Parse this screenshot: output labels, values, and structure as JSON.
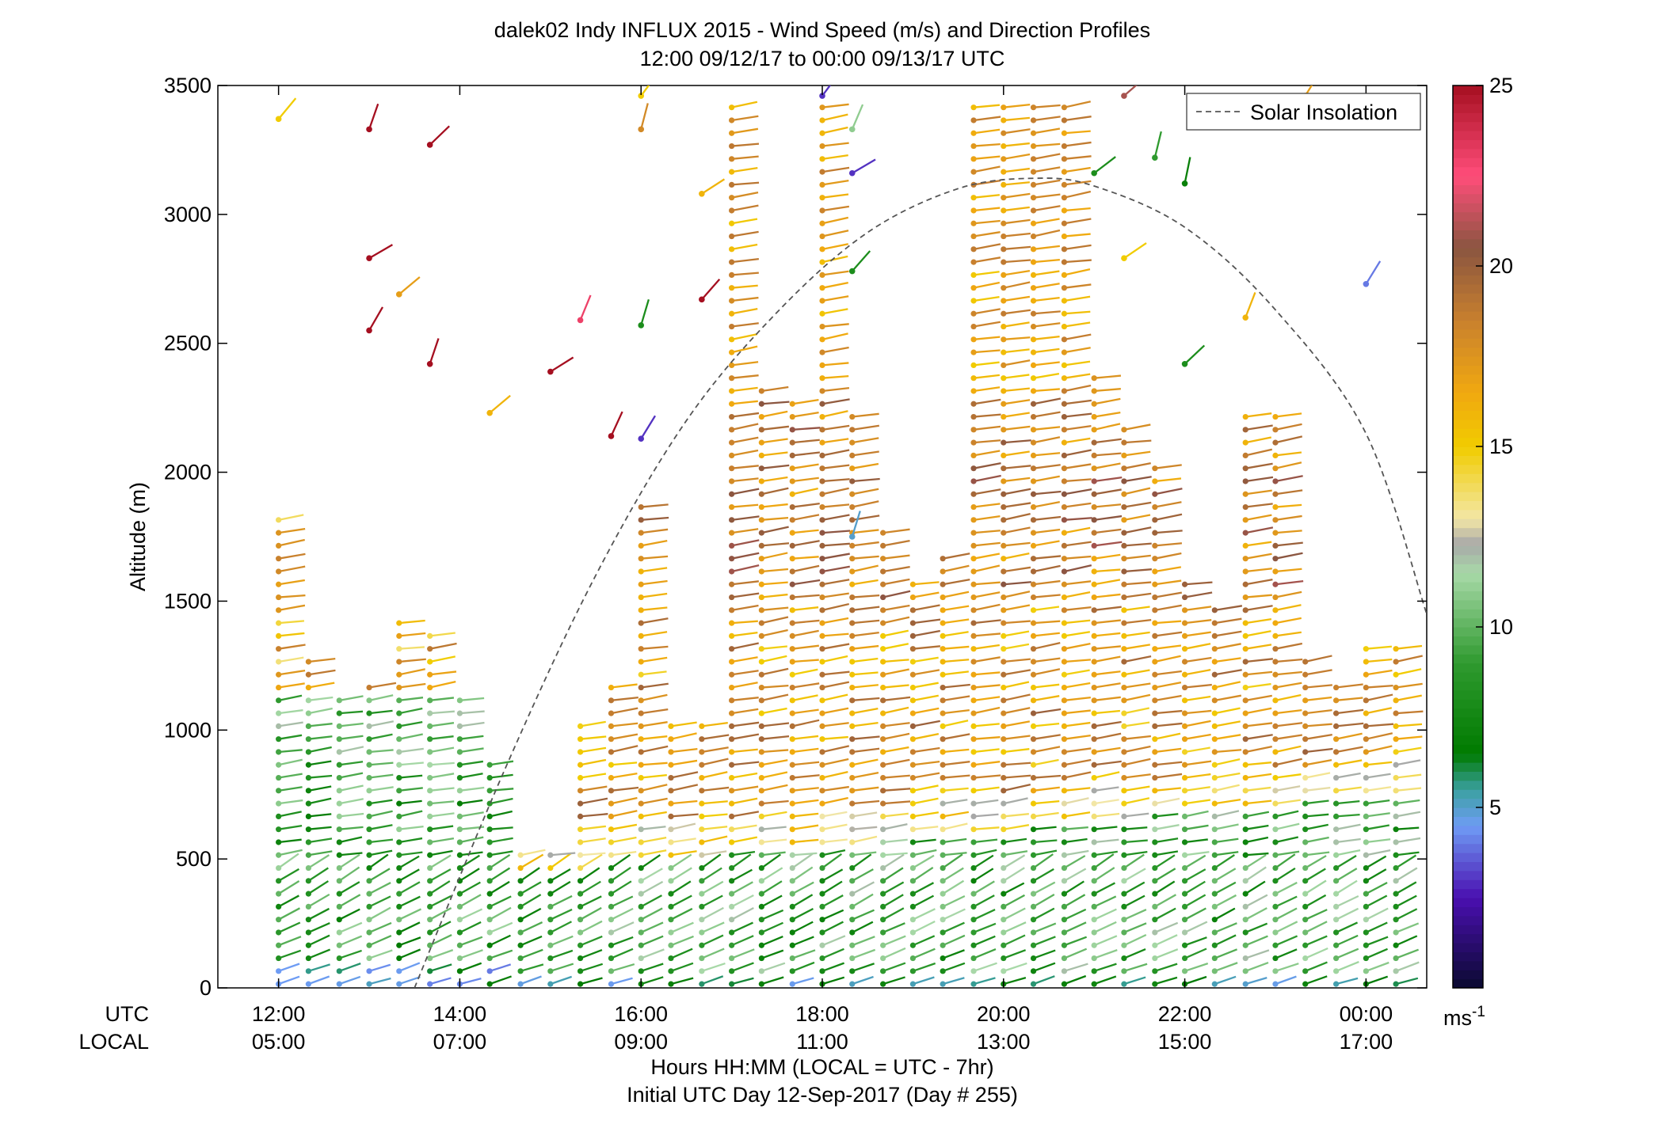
{
  "chart_data": {
    "type": "wind-barb-profile",
    "title": "dalek02 Indy INFLUX 2015 - Wind Speed (m/s) and Direction Profiles",
    "subtitle": "12:00 09/12/17 to 00:00 09/13/17  UTC",
    "ylabel": "Altitude (m)",
    "ylim": [
      0,
      3500
    ],
    "yticks": [
      0,
      500,
      1000,
      1500,
      2000,
      2500,
      3000,
      3500
    ],
    "xlim_hours": [
      11.33,
      24.67
    ],
    "x_row_labels": {
      "utc": "UTC",
      "local": "LOCAL"
    },
    "xticks": [
      {
        "hour": 12,
        "utc": "12:00",
        "local": "05:00"
      },
      {
        "hour": 14,
        "utc": "14:00",
        "local": "07:00"
      },
      {
        "hour": 16,
        "utc": "16:00",
        "local": "09:00"
      },
      {
        "hour": 18,
        "utc": "18:00",
        "local": "11:00"
      },
      {
        "hour": 20,
        "utc": "20:00",
        "local": "13:00"
      },
      {
        "hour": 22,
        "utc": "22:00",
        "local": "15:00"
      },
      {
        "hour": 24,
        "utc": "00:00",
        "local": "17:00"
      }
    ],
    "xlabel": "Hours HH:MM  (LOCAL = UTC - 7hr)",
    "xlabel2": "Initial UTC Day 12-Sep-2017 (Day # 255)",
    "legend": {
      "label": "Solar Insolation",
      "placement": "top-right",
      "line_color": "#555555"
    },
    "colorbar": {
      "range": [
        0,
        25
      ],
      "ticks": [
        5,
        10,
        15,
        20,
        25
      ],
      "unit_label": "ms",
      "unit_exponent": "-1",
      "stops": [
        {
          "v": 0,
          "color": "#0a0a30"
        },
        {
          "v": 2.5,
          "color": "#4a0fb0"
        },
        {
          "v": 4.5,
          "color": "#6f9cf5"
        },
        {
          "v": 5.5,
          "color": "#3aa0a0"
        },
        {
          "v": 6.5,
          "color": "#007a00"
        },
        {
          "v": 9,
          "color": "#2f9a2f"
        },
        {
          "v": 11.5,
          "color": "#a8d9a8"
        },
        {
          "v": 12.3,
          "color": "#a8a8a8"
        },
        {
          "v": 13,
          "color": "#f3e7a6"
        },
        {
          "v": 15,
          "color": "#f1cc00"
        },
        {
          "v": 16.5,
          "color": "#f0a810"
        },
        {
          "v": 18.5,
          "color": "#c8802e"
        },
        {
          "v": 20.5,
          "color": "#8a5540"
        },
        {
          "v": 22.5,
          "color": "#ff4d7a"
        },
        {
          "v": 25,
          "color": "#a50f20"
        }
      ]
    },
    "solar_insolation_curve": [
      {
        "hour": 13.5,
        "alt": 0
      },
      {
        "hour": 14.5,
        "alt": 850
      },
      {
        "hour": 15.5,
        "alt": 1600
      },
      {
        "hour": 16.5,
        "alt": 2200
      },
      {
        "hour": 17.5,
        "alt": 2620
      },
      {
        "hour": 18.5,
        "alt": 2930
      },
      {
        "hour": 19.5,
        "alt": 3100
      },
      {
        "hour": 20.33,
        "alt": 3140
      },
      {
        "hour": 21,
        "alt": 3110
      },
      {
        "hour": 22,
        "alt": 2950
      },
      {
        "hour": 23,
        "alt": 2630
      },
      {
        "hour": 24,
        "alt": 2150
      },
      {
        "hour": 24.67,
        "alt": 1450
      }
    ],
    "profiles": [
      {
        "hour": 12.0,
        "top": 1830,
        "regime": "morning"
      },
      {
        "hour": 12.33,
        "top": 1300,
        "regime": "morning"
      },
      {
        "hour": 12.67,
        "top": 1120,
        "regime": "morning"
      },
      {
        "hour": 13.0,
        "top": 1170,
        "regime": "morning"
      },
      {
        "hour": 13.33,
        "top": 1440,
        "regime": "morning"
      },
      {
        "hour": 13.67,
        "top": 1370,
        "regime": "morning"
      },
      {
        "hour": 14.0,
        "top": 1120,
        "regime": "morning"
      },
      {
        "hour": 14.33,
        "top": 900,
        "regime": "morning"
      },
      {
        "hour": 14.67,
        "top": 520,
        "regime": "day"
      },
      {
        "hour": 15.0,
        "top": 560,
        "regime": "day"
      },
      {
        "hour": 15.33,
        "top": 1050,
        "regime": "day"
      },
      {
        "hour": 15.67,
        "top": 1210,
        "regime": "day"
      },
      {
        "hour": 16.0,
        "top": 1900,
        "regime": "day"
      },
      {
        "hour": 16.33,
        "top": 1050,
        "regime": "day"
      },
      {
        "hour": 16.67,
        "top": 1050,
        "regime": "day"
      },
      {
        "hour": 17.0,
        "top": 3460,
        "regime": "day"
      },
      {
        "hour": 17.33,
        "top": 2360,
        "regime": "day"
      },
      {
        "hour": 17.67,
        "top": 2300,
        "regime": "day"
      },
      {
        "hour": 18.0,
        "top": 3460,
        "regime": "day"
      },
      {
        "hour": 18.33,
        "top": 2250,
        "regime": "day"
      },
      {
        "hour": 18.67,
        "top": 1780,
        "regime": "day"
      },
      {
        "hour": 19.0,
        "top": 1580,
        "regime": "day"
      },
      {
        "hour": 19.33,
        "top": 1700,
        "regime": "day"
      },
      {
        "hour": 19.67,
        "top": 3460,
        "regime": "day"
      },
      {
        "hour": 20.0,
        "top": 3460,
        "regime": "day"
      },
      {
        "hour": 20.33,
        "top": 3460,
        "regime": "day"
      },
      {
        "hour": 20.67,
        "top": 3460,
        "regime": "day"
      },
      {
        "hour": 21.0,
        "top": 2410,
        "regime": "day"
      },
      {
        "hour": 21.33,
        "top": 2200,
        "regime": "day"
      },
      {
        "hour": 21.67,
        "top": 2020,
        "regime": "day"
      },
      {
        "hour": 22.0,
        "top": 1580,
        "regime": "day"
      },
      {
        "hour": 22.33,
        "top": 1500,
        "regime": "day"
      },
      {
        "hour": 22.67,
        "top": 2230,
        "regime": "day"
      },
      {
        "hour": 23.0,
        "top": 2240,
        "regime": "day"
      },
      {
        "hour": 23.33,
        "top": 1300,
        "regime": "day"
      },
      {
        "hour": 23.67,
        "top": 1200,
        "regime": "day"
      },
      {
        "hour": 24.0,
        "top": 1330,
        "regime": "day"
      },
      {
        "hour": 24.33,
        "top": 1320,
        "regime": "day"
      }
    ],
    "scattered_barbs": [
      {
        "hour": 12.0,
        "alt": 3370,
        "speed": 15
      },
      {
        "hour": 13.0,
        "alt": 3330,
        "speed": 25
      },
      {
        "hour": 13.67,
        "alt": 3270,
        "speed": 25
      },
      {
        "hour": 13.0,
        "alt": 2830,
        "speed": 25
      },
      {
        "hour": 13.0,
        "alt": 2550,
        "speed": 25
      },
      {
        "hour": 13.33,
        "alt": 2690,
        "speed": 17
      },
      {
        "hour": 13.67,
        "alt": 2420,
        "speed": 25
      },
      {
        "hour": 14.33,
        "alt": 2230,
        "speed": 16
      },
      {
        "hour": 15.0,
        "alt": 2390,
        "speed": 25
      },
      {
        "hour": 15.33,
        "alt": 2590,
        "speed": 23
      },
      {
        "hour": 15.67,
        "alt": 2140,
        "speed": 25
      },
      {
        "hour": 16.0,
        "alt": 2130,
        "speed": 3
      },
      {
        "hour": 16.0,
        "alt": 2570,
        "speed": 8
      },
      {
        "hour": 16.0,
        "alt": 3460,
        "speed": 15
      },
      {
        "hour": 16.0,
        "alt": 3330,
        "speed": 18
      },
      {
        "hour": 16.67,
        "alt": 3080,
        "speed": 16
      },
      {
        "hour": 16.67,
        "alt": 2670,
        "speed": 25
      },
      {
        "hour": 18.0,
        "alt": 3460,
        "speed": 3
      },
      {
        "hour": 18.33,
        "alt": 3330,
        "speed": 11
      },
      {
        "hour": 18.33,
        "alt": 3160,
        "speed": 3
      },
      {
        "hour": 18.33,
        "alt": 2780,
        "speed": 8
      },
      {
        "hour": 18.33,
        "alt": 1750,
        "speed": 5
      },
      {
        "hour": 21.33,
        "alt": 3460,
        "speed": 21
      },
      {
        "hour": 21.0,
        "alt": 3160,
        "speed": 8
      },
      {
        "hour": 21.67,
        "alt": 3220,
        "speed": 9
      },
      {
        "hour": 22.0,
        "alt": 3120,
        "speed": 7
      },
      {
        "hour": 21.33,
        "alt": 2830,
        "speed": 15
      },
      {
        "hour": 22.0,
        "alt": 2420,
        "speed": 8
      },
      {
        "hour": 22.67,
        "alt": 2600,
        "speed": 16
      },
      {
        "hour": 24.0,
        "alt": 2730,
        "speed": 4
      },
      {
        "hour": 23.33,
        "alt": 3460,
        "speed": 17
      }
    ]
  }
}
